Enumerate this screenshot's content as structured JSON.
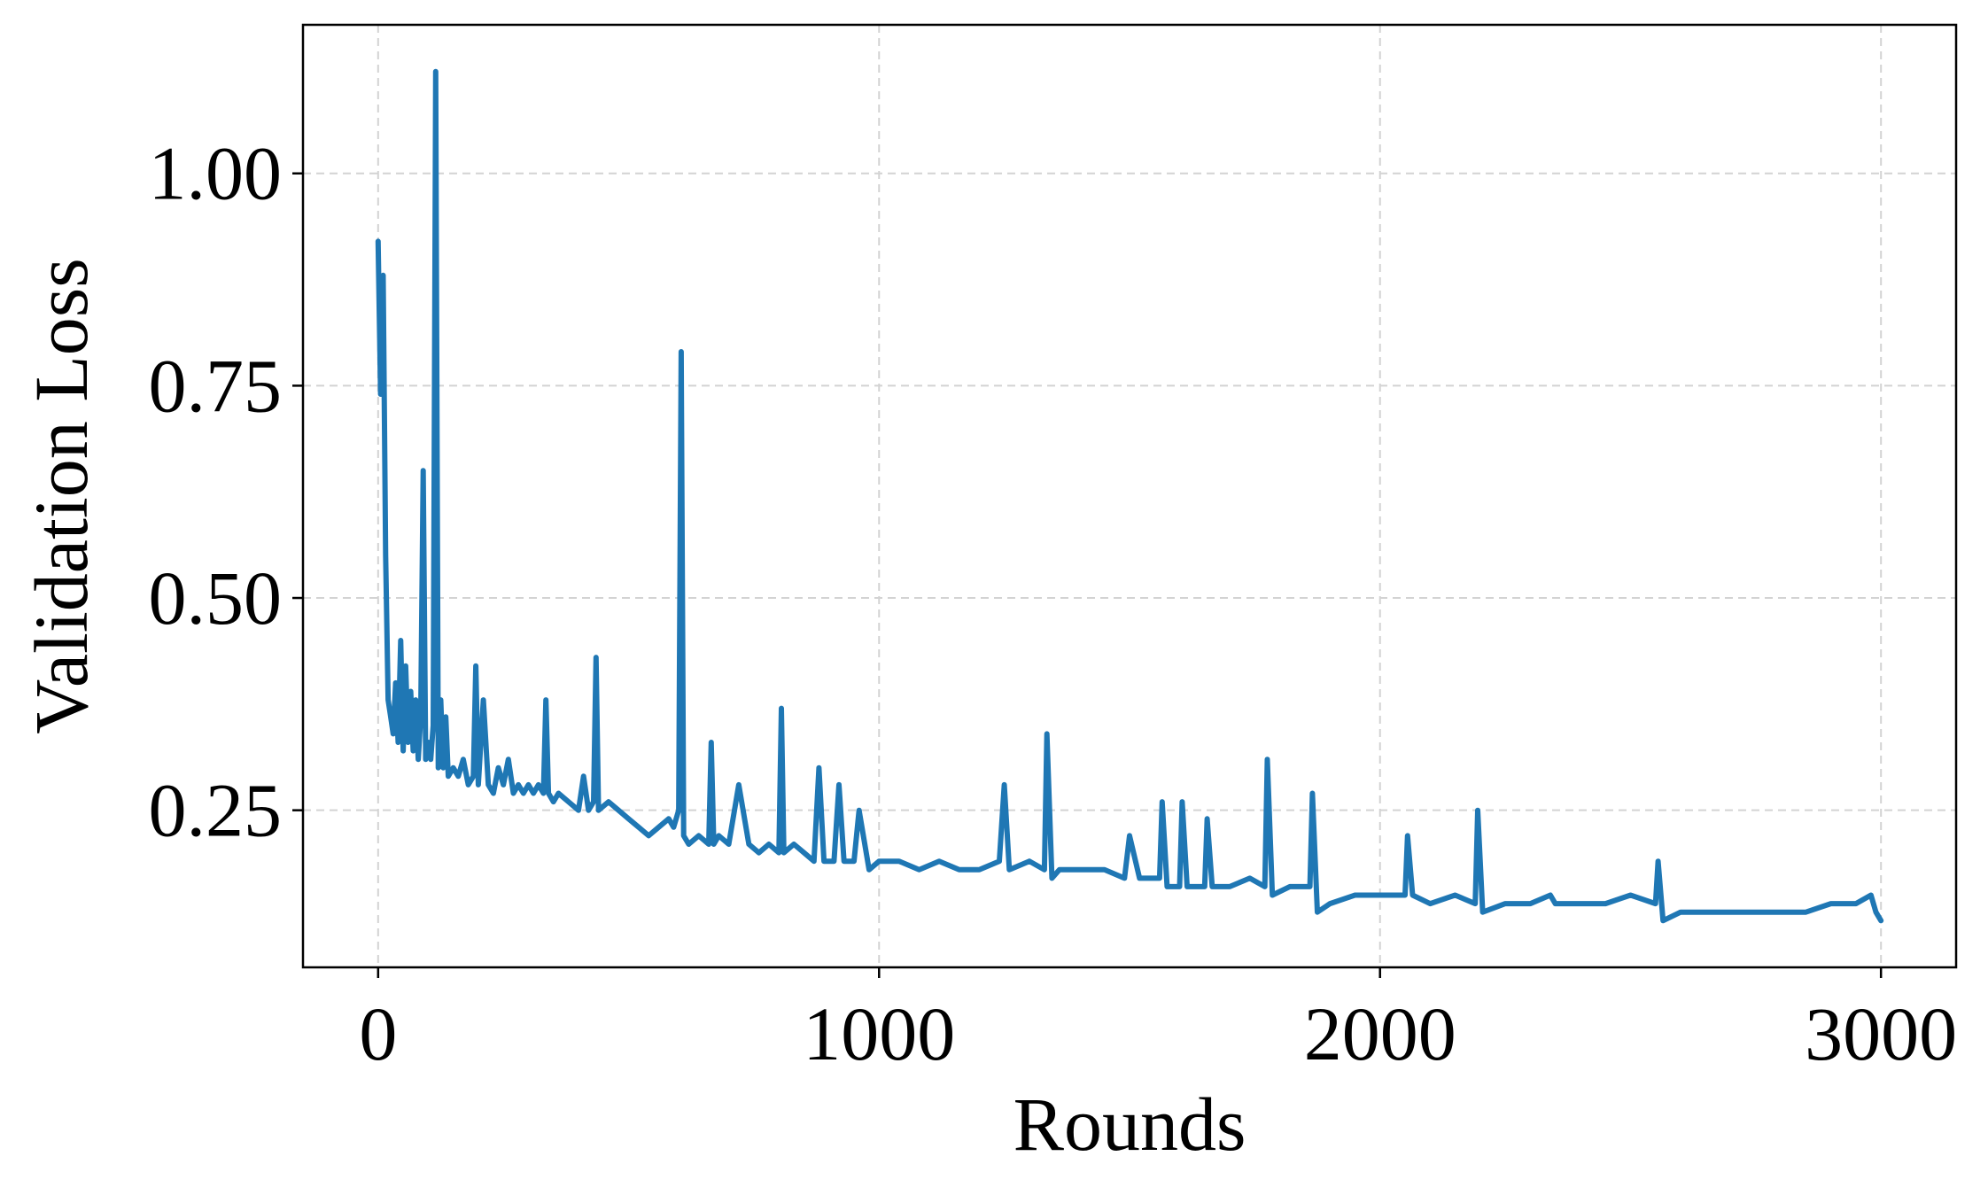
{
  "chart_data": {
    "type": "line",
    "title": "",
    "xlabel": "Rounds",
    "ylabel": "Validation Loss",
    "xlim": [
      -150,
      3150
    ],
    "ylim": [
      0.065,
      1.175
    ],
    "x_ticks": [
      0,
      1000,
      2000,
      3000
    ],
    "x_tick_labels": [
      "0",
      "1000",
      "2000",
      "3000"
    ],
    "y_ticks": [
      0.25,
      0.5,
      0.75,
      1.0
    ],
    "y_tick_labels": [
      "0.25",
      "0.50",
      "0.75",
      "1.00"
    ],
    "grid": true,
    "legend": "none",
    "line_color": "#1f77b4",
    "grid_color": "#d3d3d3",
    "series": [
      {
        "x": [
          0,
          5,
          10,
          15,
          20,
          25,
          30,
          35,
          40,
          45,
          50,
          55,
          60,
          65,
          70,
          75,
          80,
          85,
          90,
          95,
          100,
          105,
          110,
          115,
          120,
          125,
          130,
          135,
          140,
          150,
          160,
          170,
          180,
          190,
          195,
          200,
          210,
          220,
          230,
          240,
          250,
          260,
          270,
          280,
          290,
          300,
          310,
          320,
          330,
          335,
          340,
          350,
          360,
          380,
          400,
          410,
          420,
          430,
          435,
          440,
          460,
          480,
          500,
          520,
          540,
          560,
          580,
          590,
          600,
          605,
          610,
          620,
          640,
          660,
          665,
          670,
          680,
          700,
          720,
          740,
          760,
          780,
          800,
          805,
          810,
          830,
          850,
          870,
          880,
          890,
          910,
          920,
          930,
          950,
          960,
          980,
          1000,
          1040,
          1080,
          1120,
          1160,
          1200,
          1240,
          1250,
          1260,
          1300,
          1330,
          1335,
          1345,
          1360,
          1400,
          1450,
          1490,
          1500,
          1520,
          1560,
          1565,
          1575,
          1600,
          1605,
          1615,
          1650,
          1655,
          1665,
          1700,
          1740,
          1770,
          1775,
          1785,
          1820,
          1860,
          1865,
          1875,
          1900,
          1950,
          2000,
          2050,
          2055,
          2065,
          2100,
          2150,
          2190,
          2195,
          2205,
          2250,
          2300,
          2340,
          2350,
          2400,
          2450,
          2500,
          2550,
          2555,
          2565,
          2600,
          2650,
          2700,
          2750,
          2800,
          2850,
          2900,
          2950,
          2980,
          2990,
          3000
        ],
        "y": [
          0.92,
          0.74,
          0.88,
          0.55,
          0.38,
          0.36,
          0.34,
          0.4,
          0.33,
          0.45,
          0.32,
          0.42,
          0.33,
          0.39,
          0.32,
          0.38,
          0.31,
          0.36,
          0.65,
          0.31,
          0.33,
          0.31,
          0.35,
          1.12,
          0.3,
          0.38,
          0.3,
          0.36,
          0.29,
          0.3,
          0.29,
          0.31,
          0.28,
          0.29,
          0.42,
          0.28,
          0.38,
          0.28,
          0.27,
          0.3,
          0.28,
          0.31,
          0.27,
          0.28,
          0.27,
          0.28,
          0.27,
          0.28,
          0.27,
          0.38,
          0.27,
          0.26,
          0.27,
          0.26,
          0.25,
          0.29,
          0.25,
          0.26,
          0.43,
          0.25,
          0.26,
          0.25,
          0.24,
          0.23,
          0.22,
          0.23,
          0.24,
          0.23,
          0.25,
          0.79,
          0.22,
          0.21,
          0.22,
          0.21,
          0.33,
          0.21,
          0.22,
          0.21,
          0.28,
          0.21,
          0.2,
          0.21,
          0.2,
          0.37,
          0.2,
          0.21,
          0.2,
          0.19,
          0.3,
          0.19,
          0.19,
          0.28,
          0.19,
          0.19,
          0.25,
          0.18,
          0.19,
          0.19,
          0.18,
          0.19,
          0.18,
          0.18,
          0.19,
          0.28,
          0.18,
          0.19,
          0.18,
          0.34,
          0.17,
          0.18,
          0.18,
          0.18,
          0.17,
          0.22,
          0.17,
          0.17,
          0.26,
          0.16,
          0.16,
          0.26,
          0.16,
          0.16,
          0.24,
          0.16,
          0.16,
          0.17,
          0.16,
          0.31,
          0.15,
          0.16,
          0.16,
          0.27,
          0.13,
          0.14,
          0.15,
          0.15,
          0.15,
          0.22,
          0.15,
          0.14,
          0.15,
          0.14,
          0.25,
          0.13,
          0.14,
          0.14,
          0.15,
          0.14,
          0.14,
          0.14,
          0.15,
          0.14,
          0.19,
          0.12,
          0.13,
          0.13,
          0.13,
          0.13,
          0.13,
          0.13,
          0.14,
          0.14,
          0.15,
          0.13,
          0.12
        ]
      }
    ]
  }
}
